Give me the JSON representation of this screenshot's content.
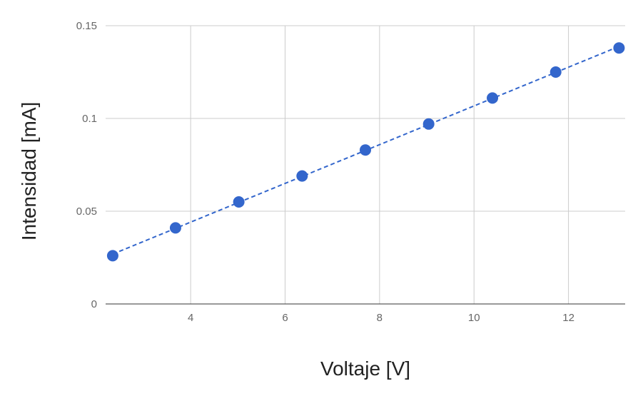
{
  "chart_data": {
    "type": "scatter",
    "xlabel": "Voltaje [V]",
    "ylabel": "Intensidad [mA]",
    "xlim": [
      2.2,
      13.2
    ],
    "ylim": [
      0,
      0.15
    ],
    "x_ticks": [
      4,
      6,
      8,
      10,
      12
    ],
    "y_ticks": [
      0,
      0.05,
      0.1,
      0.15
    ],
    "x_tick_labels": [
      "4",
      "6",
      "8",
      "10",
      "12"
    ],
    "y_tick_labels": [
      "0",
      "0.05",
      "0.1",
      "0.15"
    ],
    "grid": true,
    "legend": "none",
    "trendline": {
      "type": "linear",
      "style": "dashed"
    },
    "series": [
      {
        "color": "#3366cc",
        "points": [
          {
            "x": 2.35,
            "y": 0.026
          },
          {
            "x": 3.68,
            "y": 0.041
          },
          {
            "x": 5.02,
            "y": 0.055
          },
          {
            "x": 6.36,
            "y": 0.069
          },
          {
            "x": 7.7,
            "y": 0.083
          },
          {
            "x": 9.04,
            "y": 0.097
          },
          {
            "x": 10.39,
            "y": 0.111
          },
          {
            "x": 11.73,
            "y": 0.125
          },
          {
            "x": 13.07,
            "y": 0.138
          }
        ]
      }
    ]
  }
}
